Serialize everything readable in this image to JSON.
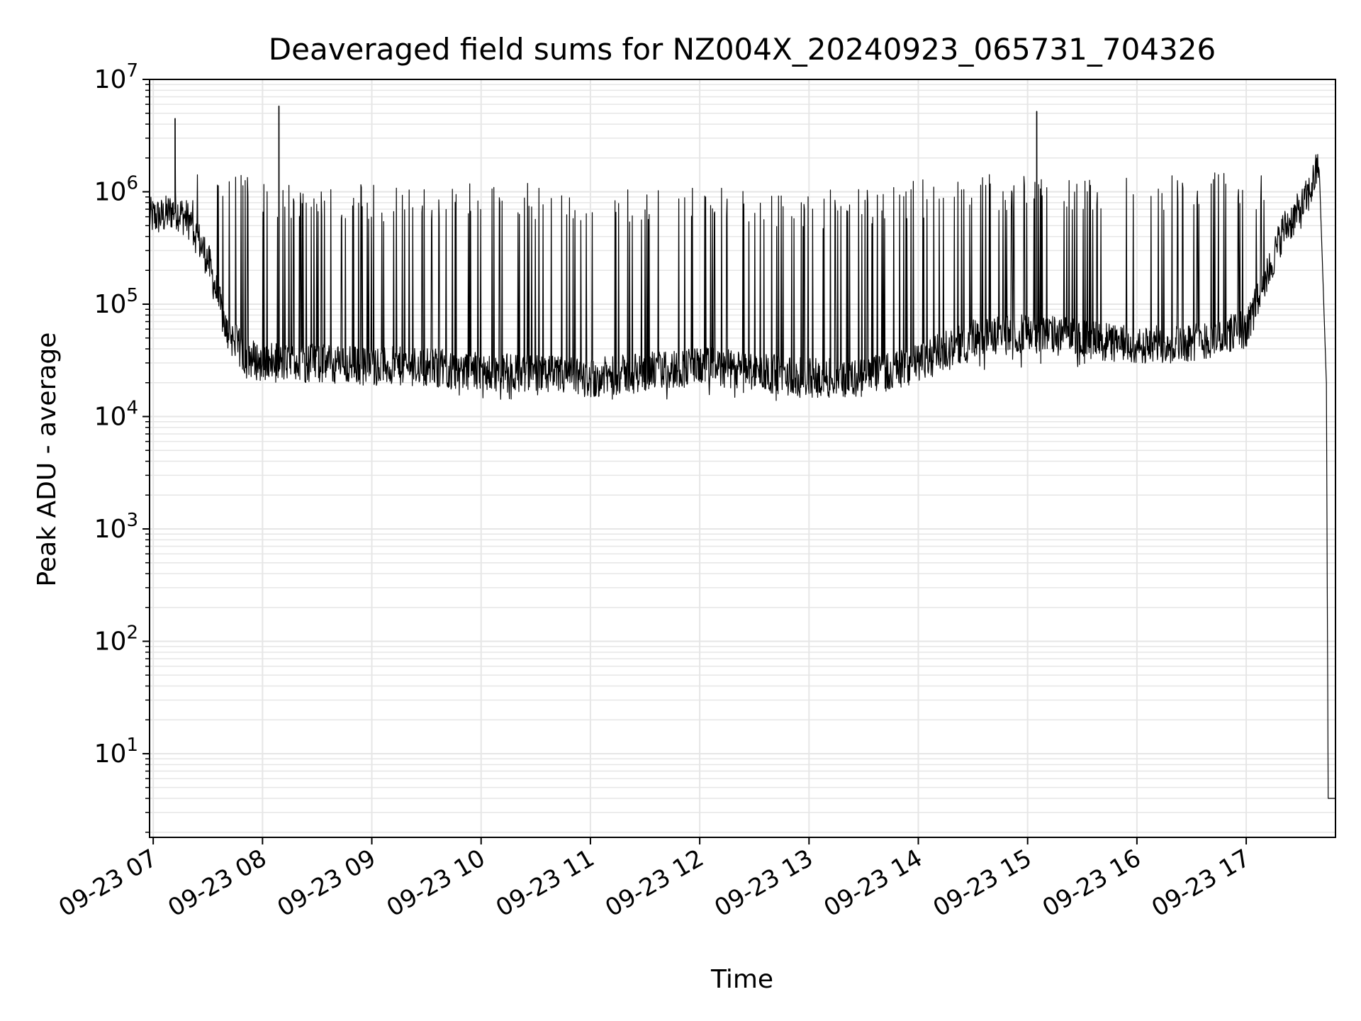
{
  "chart_data": {
    "type": "line",
    "title": "Deaveraged field sums for NZ004X_20240923_065731_704326",
    "xlabel": "Time",
    "ylabel": "Peak ADU - average",
    "yscale": "log",
    "ylim": [
      1.8,
      10000000
    ],
    "xlim": [
      "2024-09-23 06:58",
      "2024-09-23 17:49"
    ],
    "grid": true,
    "legend": "none",
    "colors": {
      "line": "#000000",
      "grid": "#e6e6e6",
      "axes": "#000000",
      "background": "#ffffff"
    },
    "x_ticks": [
      "09-23 07",
      "09-23 08",
      "09-23 09",
      "09-23 10",
      "09-23 11",
      "09-23 12",
      "09-23 13",
      "09-23 14",
      "09-23 15",
      "09-23 16",
      "09-23 17"
    ],
    "y_ticks": [
      {
        "base": "10",
        "exp": "1"
      },
      {
        "base": "10",
        "exp": "2"
      },
      {
        "base": "10",
        "exp": "3"
      },
      {
        "base": "10",
        "exp": "4"
      },
      {
        "base": "10",
        "exp": "5"
      },
      {
        "base": "10",
        "exp": "6"
      },
      {
        "base": "10",
        "exp": "7"
      }
    ],
    "series": [
      {
        "color": "#000000",
        "baseline": {
          "x": [
            "2024-09-23 06:58",
            "2024-09-23 07:05",
            "2024-09-23 07:12",
            "2024-09-23 07:20",
            "2024-09-23 07:30",
            "2024-09-23 07:40",
            "2024-09-23 07:50",
            "2024-09-23 08:00",
            "2024-09-23 08:30",
            "2024-09-23 09:00",
            "2024-09-23 09:30",
            "2024-09-23 10:00",
            "2024-09-23 10:30",
            "2024-09-23 11:00",
            "2024-09-23 11:30",
            "2024-09-23 12:00",
            "2024-09-23 12:30",
            "2024-09-23 13:00",
            "2024-09-23 13:30",
            "2024-09-23 14:00",
            "2024-09-23 14:30",
            "2024-09-23 15:00",
            "2024-09-23 15:30",
            "2024-09-23 16:00",
            "2024-09-23 16:20",
            "2024-09-23 16:40",
            "2024-09-23 17:00",
            "2024-09-23 17:10",
            "2024-09-23 17:20",
            "2024-09-23 17:30",
            "2024-09-23 17:35",
            "2024-09-23 17:40",
            "2024-09-23 17:44",
            "2024-09-23 17:45",
            "2024-09-23 17:49"
          ],
          "y": [
            600000,
            600000,
            700000,
            550000,
            250000,
            60000,
            35000,
            30000,
            30000,
            28000,
            28000,
            25000,
            24000,
            22000,
            25000,
            28000,
            25000,
            22000,
            22000,
            30000,
            50000,
            55000,
            50000,
            42000,
            45000,
            48000,
            60000,
            150000,
            450000,
            700000,
            1000000,
            1800000,
            20000,
            4,
            4
          ]
        },
        "spikes": [
          {
            "x": "2024-09-23 07:12",
            "y": 4500000
          },
          {
            "x": "2024-09-23 08:09",
            "y": 5800000
          },
          {
            "x": "2024-09-23 15:05",
            "y": 5200000
          }
        ],
        "envelope_max": {
          "x": [
            "2024-09-23 07:20",
            "2024-09-23 08:00",
            "2024-09-23 09:00",
            "2024-09-23 10:00",
            "2024-09-23 11:00",
            "2024-09-23 12:00",
            "2024-09-23 13:00",
            "2024-09-23 14:00",
            "2024-09-23 15:00",
            "2024-09-23 16:00",
            "2024-09-23 17:00"
          ],
          "y": [
            1800000,
            1300000,
            1200000,
            1200000,
            1200000,
            1150000,
            1000000,
            1300000,
            1500000,
            1500000,
            1500000
          ]
        },
        "envelope_min": {
          "x": [
            "2024-09-23 07:40",
            "2024-09-23 08:00",
            "2024-09-23 09:00",
            "2024-09-23 10:00",
            "2024-09-23 11:00",
            "2024-09-23 12:00",
            "2024-09-23 13:00",
            "2024-09-23 14:00",
            "2024-09-23 15:00",
            "2024-09-23 16:00",
            "2024-09-23 17:00"
          ],
          "y": [
            20000,
            20000,
            20000,
            14000,
            14000,
            13000,
            14000,
            20000,
            25000,
            30000,
            35000
          ]
        }
      }
    ]
  }
}
